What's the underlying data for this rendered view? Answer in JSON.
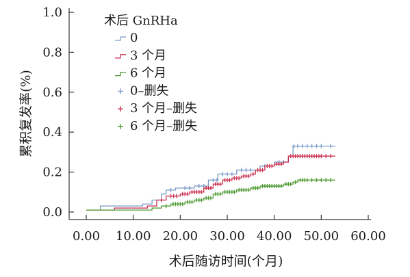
{
  "chart_data": {
    "type": "line",
    "subtype": "kaplan-meier step curve",
    "xlabel": "术后随访时间(个月)",
    "ylabel": "累积复发率(%)",
    "xlim": [
      0,
      60
    ],
    "ylim": [
      0,
      1.0
    ],
    "xticks": [
      "0.00",
      "10.00",
      "20.00",
      "30.00",
      "40.00",
      "50.00",
      "60.00"
    ],
    "yticks": [
      "0.0",
      "0.2",
      "0.4",
      "0.6",
      "0.8",
      "1.0"
    ],
    "grid": false,
    "legend": {
      "title": "术后 GnRHa",
      "position": "top-left",
      "entries": [
        {
          "label": "0",
          "series": "0",
          "kind": "curve"
        },
        {
          "label": "3 个月",
          "series": "3",
          "kind": "curve"
        },
        {
          "label": "6 个月",
          "series": "6",
          "kind": "curve"
        },
        {
          "label": "0–删失",
          "series": "0",
          "kind": "censor"
        },
        {
          "label": "3 个月–删失",
          "series": "3",
          "kind": "censor"
        },
        {
          "label": "6 个月–删失",
          "series": "6",
          "kind": "censor"
        }
      ]
    },
    "series": [
      {
        "key": "0",
        "color": "#7c9cc9",
        "steps": [
          [
            0,
            0.01
          ],
          [
            3,
            0.03
          ],
          [
            10,
            0.03
          ],
          [
            12,
            0.04
          ],
          [
            14,
            0.06
          ],
          [
            16,
            0.09
          ],
          [
            17,
            0.11
          ],
          [
            19,
            0.12
          ],
          [
            23,
            0.13
          ],
          [
            26,
            0.16
          ],
          [
            28,
            0.19
          ],
          [
            32,
            0.21
          ],
          [
            37,
            0.23
          ],
          [
            40,
            0.25
          ],
          [
            43,
            0.28
          ],
          [
            44,
            0.33
          ],
          [
            53,
            0.33
          ]
        ],
        "censored": [
          [
            18,
            0.11
          ],
          [
            21,
            0.12
          ],
          [
            22,
            0.12
          ],
          [
            24,
            0.13
          ],
          [
            25,
            0.13
          ],
          [
            27,
            0.16
          ],
          [
            27.8,
            0.16
          ],
          [
            29,
            0.19
          ],
          [
            30,
            0.19
          ],
          [
            31,
            0.19
          ],
          [
            33,
            0.21
          ],
          [
            34,
            0.21
          ],
          [
            35,
            0.21
          ],
          [
            38,
            0.23
          ],
          [
            39,
            0.23
          ],
          [
            41,
            0.25
          ],
          [
            42,
            0.25
          ],
          [
            44.2,
            0.33
          ],
          [
            45,
            0.33
          ],
          [
            46,
            0.33
          ],
          [
            47,
            0.33
          ],
          [
            48,
            0.33
          ],
          [
            49,
            0.33
          ],
          [
            50,
            0.33
          ],
          [
            52,
            0.33
          ]
        ]
      },
      {
        "key": "3",
        "color": "#c8304f",
        "steps": [
          [
            0,
            0.01
          ],
          [
            6,
            0.02
          ],
          [
            11,
            0.02
          ],
          [
            13,
            0.03
          ],
          [
            15,
            0.06
          ],
          [
            17,
            0.08
          ],
          [
            20,
            0.09
          ],
          [
            22,
            0.1
          ],
          [
            25,
            0.12
          ],
          [
            27,
            0.14
          ],
          [
            29,
            0.16
          ],
          [
            31,
            0.17
          ],
          [
            33,
            0.18
          ],
          [
            35,
            0.19
          ],
          [
            36,
            0.21
          ],
          [
            38,
            0.23
          ],
          [
            40,
            0.24
          ],
          [
            42,
            0.25
          ],
          [
            43,
            0.28
          ],
          [
            53,
            0.28
          ]
        ],
        "censored": [
          [
            16,
            0.06
          ],
          [
            18,
            0.08
          ],
          [
            18.6,
            0.08
          ],
          [
            19.2,
            0.08
          ],
          [
            20.5,
            0.09
          ],
          [
            21,
            0.09
          ],
          [
            21.5,
            0.09
          ],
          [
            22.5,
            0.1
          ],
          [
            23,
            0.1
          ],
          [
            23.5,
            0.1
          ],
          [
            24,
            0.1
          ],
          [
            24.5,
            0.1
          ],
          [
            25.5,
            0.12
          ],
          [
            26,
            0.12
          ],
          [
            26.5,
            0.12
          ],
          [
            27.5,
            0.14
          ],
          [
            28,
            0.14
          ],
          [
            28.5,
            0.14
          ],
          [
            29.5,
            0.16
          ],
          [
            30,
            0.16
          ],
          [
            30.5,
            0.16
          ],
          [
            31.5,
            0.17
          ],
          [
            32,
            0.17
          ],
          [
            32.5,
            0.17
          ],
          [
            33.5,
            0.18
          ],
          [
            34,
            0.18
          ],
          [
            34.5,
            0.18
          ],
          [
            35.5,
            0.19
          ],
          [
            36.5,
            0.21
          ],
          [
            37,
            0.21
          ],
          [
            37.5,
            0.21
          ],
          [
            38.5,
            0.23
          ],
          [
            39,
            0.23
          ],
          [
            39.5,
            0.23
          ],
          [
            40.5,
            0.24
          ],
          [
            41,
            0.24
          ],
          [
            41.5,
            0.24
          ],
          [
            43.5,
            0.28
          ],
          [
            44,
            0.28
          ],
          [
            44.5,
            0.28
          ],
          [
            45,
            0.28
          ],
          [
            45.5,
            0.28
          ],
          [
            46,
            0.28
          ],
          [
            46.5,
            0.28
          ],
          [
            47,
            0.28
          ],
          [
            47.5,
            0.28
          ],
          [
            48,
            0.28
          ],
          [
            48.5,
            0.28
          ],
          [
            49,
            0.28
          ],
          [
            49.5,
            0.28
          ],
          [
            50,
            0.28
          ],
          [
            51,
            0.28
          ],
          [
            52,
            0.28
          ]
        ]
      },
      {
        "key": "6",
        "color": "#4e9a32",
        "steps": [
          [
            0,
            0.01
          ],
          [
            12,
            0.01
          ],
          [
            14,
            0.02
          ],
          [
            16,
            0.03
          ],
          [
            18,
            0.04
          ],
          [
            21,
            0.05
          ],
          [
            23,
            0.06
          ],
          [
            25,
            0.07
          ],
          [
            27,
            0.09
          ],
          [
            29,
            0.1
          ],
          [
            32,
            0.11
          ],
          [
            35,
            0.12
          ],
          [
            37,
            0.13
          ],
          [
            42,
            0.14
          ],
          [
            44,
            0.15
          ],
          [
            45,
            0.16
          ],
          [
            53,
            0.16
          ]
        ],
        "censored": [
          [
            17,
            0.03
          ],
          [
            18.5,
            0.04
          ],
          [
            19,
            0.04
          ],
          [
            19.5,
            0.04
          ],
          [
            20,
            0.04
          ],
          [
            20.5,
            0.04
          ],
          [
            21.5,
            0.05
          ],
          [
            22,
            0.05
          ],
          [
            22.5,
            0.05
          ],
          [
            23.5,
            0.06
          ],
          [
            24,
            0.06
          ],
          [
            24.5,
            0.06
          ],
          [
            25.5,
            0.07
          ],
          [
            26,
            0.07
          ],
          [
            26.5,
            0.07
          ],
          [
            27.5,
            0.09
          ],
          [
            28,
            0.09
          ],
          [
            28.5,
            0.09
          ],
          [
            29.5,
            0.1
          ],
          [
            30,
            0.1
          ],
          [
            30.5,
            0.1
          ],
          [
            31,
            0.1
          ],
          [
            31.5,
            0.1
          ],
          [
            32.5,
            0.11
          ],
          [
            33,
            0.11
          ],
          [
            33.5,
            0.11
          ],
          [
            34,
            0.11
          ],
          [
            34.5,
            0.11
          ],
          [
            35.5,
            0.12
          ],
          [
            36,
            0.12
          ],
          [
            36.5,
            0.12
          ],
          [
            37.5,
            0.13
          ],
          [
            38,
            0.13
          ],
          [
            38.5,
            0.13
          ],
          [
            39,
            0.13
          ],
          [
            39.5,
            0.13
          ],
          [
            40,
            0.13
          ],
          [
            40.5,
            0.13
          ],
          [
            41,
            0.13
          ],
          [
            41.5,
            0.13
          ],
          [
            42.5,
            0.14
          ],
          [
            43,
            0.14
          ],
          [
            43.5,
            0.14
          ],
          [
            44.5,
            0.15
          ],
          [
            45.5,
            0.16
          ],
          [
            46,
            0.16
          ],
          [
            46.5,
            0.16
          ],
          [
            47,
            0.16
          ],
          [
            48,
            0.16
          ],
          [
            49,
            0.16
          ],
          [
            50,
            0.16
          ],
          [
            51,
            0.16
          ],
          [
            52,
            0.16
          ]
        ]
      }
    ]
  }
}
